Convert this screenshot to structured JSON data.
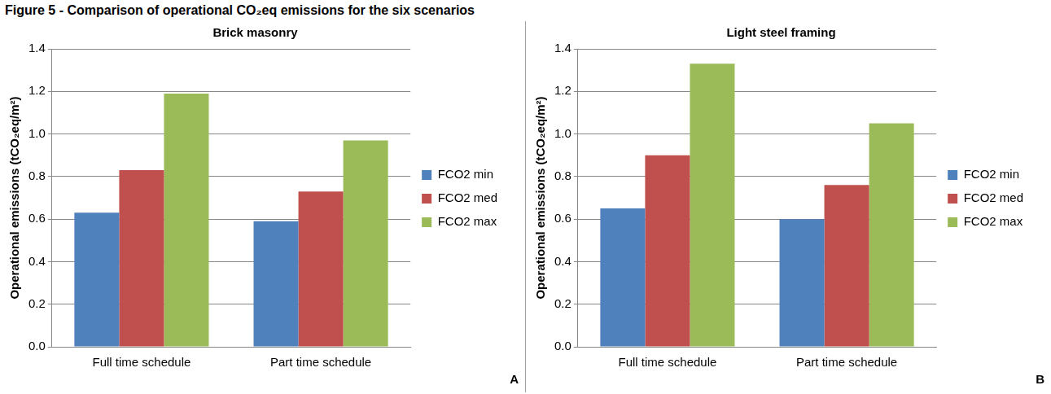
{
  "title": "Figure 5 - Comparison of operational CO₂eq emissions for the six scenarios",
  "chart_data": [
    {
      "type": "bar",
      "title": "Brick masonry",
      "y_label": "Operational emissions (tCO₂eq/m²)",
      "categories": [
        "Full time schedule",
        "Part time schedule"
      ],
      "series": [
        {
          "name": "FCO2 min",
          "color": "#4f81bd",
          "values": [
            0.63,
            0.59
          ]
        },
        {
          "name": "FCO2 med",
          "color": "#c0504d",
          "values": [
            0.83,
            0.73
          ]
        },
        {
          "name": "FCO2 max",
          "color": "#9bbb59",
          "values": [
            1.19,
            0.97
          ]
        }
      ],
      "ylim": [
        0,
        1.4
      ],
      "yticks": [
        {
          "value": 0,
          "label": "0.0"
        },
        0.2,
        0.4,
        0.6,
        0.8,
        {
          "value": 1,
          "label": "1.0"
        },
        1.2,
        1.4
      ],
      "grid": true,
      "legend": "right",
      "annotations": [
        "A"
      ]
    },
    {
      "type": "bar",
      "title": "Light steel framing",
      "y_label": "Operational emissions (tCO₂eq/m²)",
      "categories": [
        "Full time schedule",
        "Part time schedule"
      ],
      "series": [
        {
          "name": "FCO2 min",
          "color": "#4f81bd",
          "values": [
            0.65,
            0.6
          ]
        },
        {
          "name": "FCO2 med",
          "color": "#c0504d",
          "values": [
            0.9,
            0.76
          ]
        },
        {
          "name": "FCO2 max",
          "color": "#9bbb59",
          "values": [
            1.33,
            1.05
          ]
        }
      ],
      "ylim": [
        0,
        1.4
      ],
      "yticks": [
        {
          "value": 0,
          "label": "0.0"
        },
        0.2,
        0.4,
        0.6,
        0.8,
        {
          "value": 1,
          "label": "1.0"
        },
        1.2,
        1.4
      ],
      "grid": true,
      "legend": "right",
      "annotations": [
        "B"
      ]
    }
  ]
}
